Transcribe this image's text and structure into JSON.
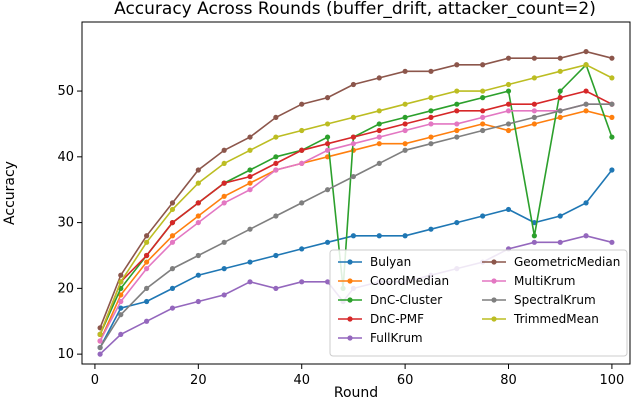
{
  "chart_data": {
    "type": "line",
    "title": "Accuracy Across Rounds (buffer_drift, attacker_count=2)",
    "xlabel": "Round",
    "ylabel": "Accuracy",
    "xlim": [
      -2.5,
      103.5
    ],
    "ylim": [
      8.5,
      60.5
    ],
    "xticks": [
      0,
      20,
      40,
      60,
      80,
      100
    ],
    "yticks": [
      10,
      20,
      30,
      40,
      50
    ],
    "grid": false,
    "legend_placement": "lower-right",
    "series": [
      {
        "name": "Bulyan",
        "color": "#1f77b4",
        "marker": "o",
        "x": [
          1,
          5,
          10,
          15,
          20,
          25,
          30,
          35,
          40,
          45,
          50,
          55,
          60,
          65,
          70,
          75,
          80,
          85,
          90,
          95,
          100
        ],
        "values": [
          11,
          17,
          18,
          20,
          22,
          23,
          24,
          25,
          26,
          27,
          28,
          28,
          28,
          29,
          30,
          31,
          32,
          30,
          31,
          33,
          38
        ]
      },
      {
        "name": "CoordMedian",
        "color": "#ff7f0e",
        "marker": "o",
        "x": [
          1,
          5,
          10,
          15,
          20,
          25,
          30,
          35,
          40,
          45,
          50,
          55,
          60,
          65,
          70,
          75,
          80,
          85,
          90,
          95,
          100
        ],
        "values": [
          12,
          19,
          24,
          28,
          31,
          34,
          36,
          38,
          39,
          40,
          41,
          42,
          42,
          43,
          44,
          45,
          44,
          45,
          46,
          47,
          46
        ]
      },
      {
        "name": "DnC-Cluster",
        "color": "#2ca02c",
        "marker": "o",
        "x": [
          1,
          5,
          10,
          15,
          20,
          25,
          30,
          35,
          40,
          45,
          48,
          50,
          55,
          60,
          65,
          70,
          75,
          80,
          85,
          90,
          95,
          100
        ],
        "values": [
          13,
          20,
          25,
          30,
          33,
          36,
          38,
          40,
          41,
          43,
          20,
          43,
          45,
          46,
          47,
          48,
          49,
          50,
          28,
          50,
          54,
          43
        ]
      },
      {
        "name": "DnC-PMF",
        "color": "#d62728",
        "marker": "o",
        "x": [
          1,
          5,
          10,
          15,
          20,
          25,
          30,
          35,
          40,
          45,
          50,
          55,
          60,
          65,
          70,
          75,
          80,
          85,
          90,
          95,
          100
        ],
        "values": [
          13,
          21,
          25,
          30,
          33,
          36,
          37,
          39,
          41,
          42,
          43,
          44,
          45,
          46,
          47,
          47,
          48,
          48,
          49,
          50,
          48
        ]
      },
      {
        "name": "FullKrum",
        "color": "#9467bd",
        "marker": "o",
        "x": [
          1,
          5,
          10,
          15,
          20,
          25,
          30,
          35,
          40,
          45,
          48,
          50,
          55,
          60,
          65,
          70,
          75,
          80,
          85,
          90,
          95,
          100
        ],
        "values": [
          10,
          13,
          15,
          17,
          18,
          19,
          21,
          20,
          21,
          21,
          18,
          20,
          21,
          21,
          22,
          23,
          24,
          26,
          27,
          27,
          28,
          27
        ]
      },
      {
        "name": "GeometricMedian",
        "color": "#8c564b",
        "marker": "o",
        "x": [
          1,
          5,
          10,
          15,
          20,
          25,
          30,
          35,
          40,
          45,
          50,
          55,
          60,
          65,
          70,
          75,
          80,
          85,
          90,
          95,
          100
        ],
        "values": [
          14,
          22,
          28,
          33,
          38,
          41,
          43,
          46,
          48,
          49,
          51,
          52,
          53,
          53,
          54,
          54,
          55,
          55,
          55,
          56,
          55
        ]
      },
      {
        "name": "MultiKrum",
        "color": "#e377c2",
        "marker": "o",
        "x": [
          1,
          5,
          10,
          15,
          20,
          25,
          30,
          35,
          40,
          45,
          50,
          55,
          60,
          65,
          70,
          75,
          80,
          85,
          90,
          95,
          100
        ],
        "values": [
          12,
          18,
          23,
          27,
          30,
          33,
          35,
          38,
          39,
          41,
          42,
          43,
          44,
          45,
          45,
          46,
          47,
          47,
          47,
          48,
          48
        ]
      },
      {
        "name": "SpectralKrum",
        "color": "#7f7f7f",
        "marker": "o",
        "x": [
          1,
          5,
          10,
          15,
          20,
          25,
          30,
          35,
          40,
          45,
          50,
          55,
          60,
          65,
          70,
          75,
          80,
          85,
          90,
          95,
          100
        ],
        "values": [
          11,
          16,
          20,
          23,
          25,
          27,
          29,
          31,
          33,
          35,
          37,
          39,
          41,
          42,
          43,
          44,
          45,
          46,
          47,
          48,
          48
        ]
      },
      {
        "name": "TrimmedMean",
        "color": "#bcbd22",
        "marker": "o",
        "x": [
          1,
          5,
          10,
          15,
          20,
          25,
          30,
          35,
          40,
          45,
          50,
          55,
          60,
          65,
          70,
          75,
          80,
          85,
          90,
          95,
          100
        ],
        "values": [
          13,
          21,
          27,
          32,
          36,
          39,
          41,
          43,
          44,
          45,
          46,
          47,
          48,
          49,
          50,
          50,
          51,
          52,
          53,
          54,
          52
        ]
      }
    ]
  }
}
